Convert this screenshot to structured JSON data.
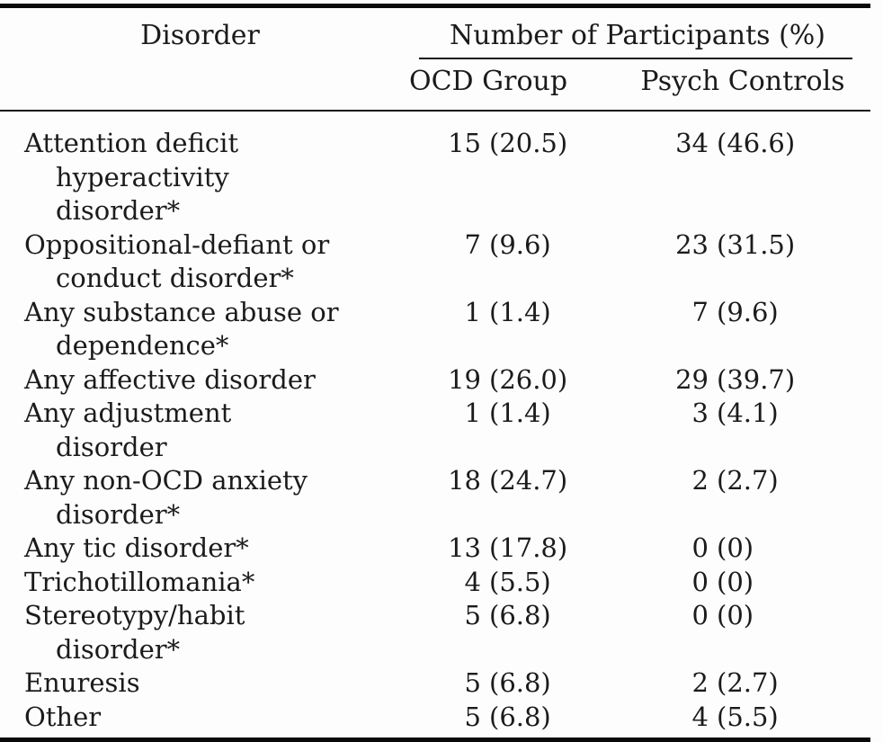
{
  "table": {
    "header": {
      "disorder_col": "Disorder",
      "participants_group": "Number of Participants (%)",
      "ocd_col": "OCD Group",
      "psych_col": "Psych Controls"
    },
    "rows": [
      {
        "disorder": "Attention deficit hyperactivity disorder*",
        "ocd_n": "15",
        "ocd_pct": "(20.5)",
        "psych_n": "34",
        "psych_pct": "(46.6)"
      },
      {
        "disorder": "Oppositional-defiant or conduct disorder*",
        "ocd_n": "7",
        "ocd_pct": "(9.6)",
        "psych_n": "23",
        "psych_pct": "(31.5)"
      },
      {
        "disorder": "Any substance abuse or dependence*",
        "ocd_n": "1",
        "ocd_pct": "(1.4)",
        "psych_n": "7",
        "psych_pct": "(9.6)"
      },
      {
        "disorder": "Any affective disorder",
        "ocd_n": "19",
        "ocd_pct": "(26.0)",
        "psych_n": "29",
        "psych_pct": "(39.7)"
      },
      {
        "disorder": "Any adjustment disorder",
        "ocd_n": "1",
        "ocd_pct": "(1.4)",
        "psych_n": "3",
        "psych_pct": "(4.1)"
      },
      {
        "disorder": "Any non-OCD anxiety disorder*",
        "ocd_n": "18",
        "ocd_pct": "(24.7)",
        "psych_n": "2",
        "psych_pct": "(2.7)"
      },
      {
        "disorder": "Any tic disorder*",
        "ocd_n": "13",
        "ocd_pct": "(17.8)",
        "psych_n": "0",
        "psych_pct": "(0)"
      },
      {
        "disorder": "Trichotillomania*",
        "ocd_n": "4",
        "ocd_pct": "(5.5)",
        "psych_n": "0",
        "psych_pct": "(0)"
      },
      {
        "disorder": "Stereotypy/habit disorder*",
        "ocd_n": "5",
        "ocd_pct": "(6.8)",
        "psych_n": "0",
        "psych_pct": "(0)"
      },
      {
        "disorder": "Enuresis",
        "ocd_n": "5",
        "ocd_pct": "(6.8)",
        "psych_n": "2",
        "psych_pct": "(2.7)"
      },
      {
        "disorder": "Other",
        "ocd_n": "5",
        "ocd_pct": "(6.8)",
        "psych_n": "4",
        "psych_pct": "(5.5)"
      }
    ],
    "colors": {
      "text": "#1b1b1b",
      "rule": "#0a0a0a",
      "background": "#fdfdfd"
    }
  }
}
